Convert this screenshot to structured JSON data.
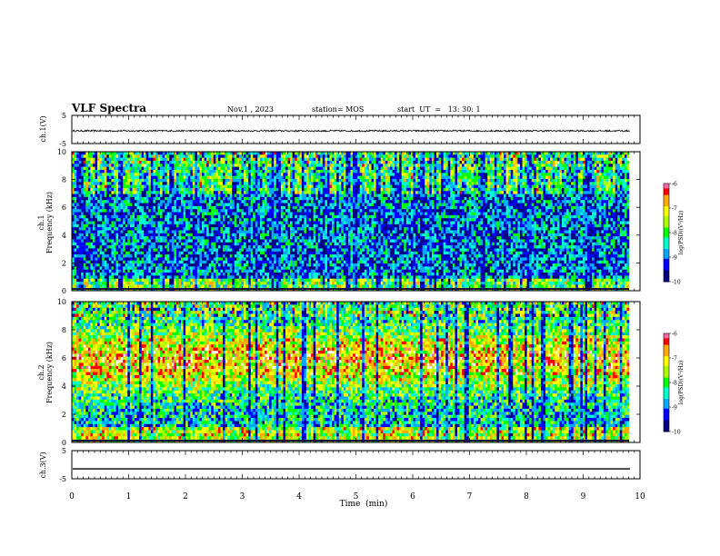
{
  "header": {
    "title": "VLF Spectra",
    "date": "Nov.1  , 2023",
    "station": "station= MOS",
    "start_ut": "start  UT  =   13: 30: 1"
  },
  "chart_data": [
    {
      "type": "line",
      "panel": "ch1-waveform",
      "ylabel": "ch.1(V)",
      "ylim": [
        -5,
        5
      ],
      "yticks": [
        "5",
        "-5"
      ],
      "series": [
        {
          "approx_level": -0.5,
          "noise_amplitude": 0.3
        }
      ],
      "color": "#000000"
    },
    {
      "type": "heatmap",
      "panel": "ch1-spectrogram",
      "ylabel": [
        "ch.1",
        "Frequency (kHz)"
      ],
      "ylim": [
        0,
        10
      ],
      "yticks": [
        "0",
        "2",
        "4",
        "6",
        "8",
        "10"
      ],
      "colorbar": {
        "label": "log(PSD)(V²/Hz)",
        "range": [
          -10,
          -6
        ],
        "ticks": [
          "-6",
          "-7",
          "-8",
          "-9",
          "-10"
        ]
      }
    },
    {
      "type": "heatmap",
      "panel": "ch2-spectrogram",
      "ylabel": [
        "ch.2",
        "Frequency (kHz)"
      ],
      "ylim": [
        0,
        10
      ],
      "yticks": [
        "0",
        "2",
        "4",
        "6",
        "8",
        "10"
      ],
      "colorbar": {
        "label": "log(PSD)(V²/Hz)",
        "range": [
          -10,
          -6
        ],
        "ticks": [
          "-6",
          "-7",
          "-8",
          "-9",
          "-10"
        ]
      }
    },
    {
      "type": "line",
      "panel": "ch3-waveform",
      "ylabel": "ch.3(V)",
      "ylim": [
        -5,
        5
      ],
      "yticks": [
        "5",
        "-5"
      ],
      "series": [
        {
          "approx_level": -1.5,
          "noise_amplitude": 0
        }
      ],
      "color": "#000000"
    }
  ],
  "x_axis": {
    "label": "Time  (min)",
    "range": [
      0,
      10
    ],
    "ticks": [
      "0",
      "1",
      "2",
      "3",
      "4",
      "5",
      "6",
      "7",
      "8",
      "9",
      "10"
    ]
  },
  "colors": {
    "colormap": [
      "#000080",
      "#0000ff",
      "#00aaff",
      "#00ffcc",
      "#00ff00",
      "#aaff00",
      "#ffff00",
      "#ffaa00",
      "#ff0000",
      "#ff66aa",
      "#ffffff"
    ]
  }
}
